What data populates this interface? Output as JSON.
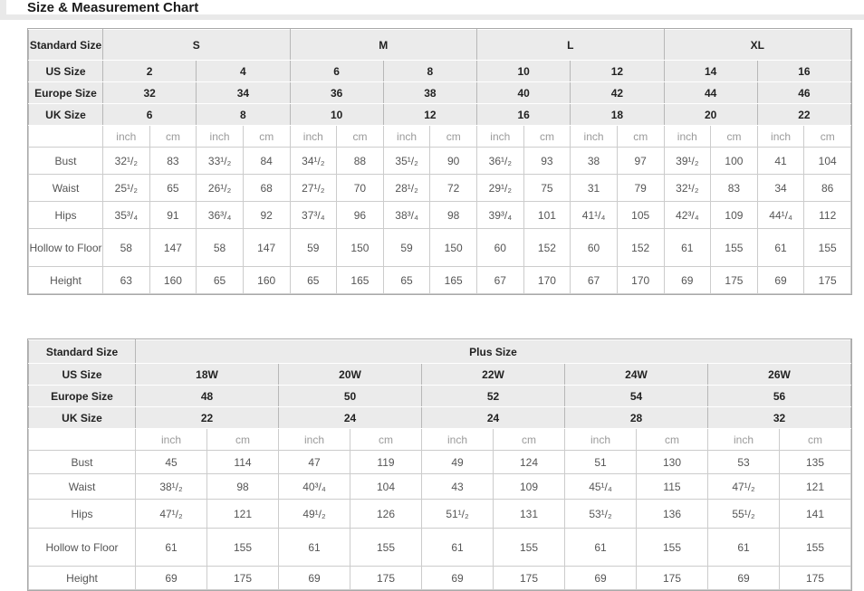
{
  "page": {
    "title": "Size & Measurement Chart"
  },
  "chart_data": [
    {
      "type": "table",
      "id": "standard",
      "corner_label": "Standard Size",
      "size_groups": [
        {
          "label": "S",
          "span": 4
        },
        {
          "label": "M",
          "span": 4
        },
        {
          "label": "L",
          "span": 4
        },
        {
          "label": "XL",
          "span": 4
        }
      ],
      "size_rows": [
        {
          "label": "US Size",
          "values": [
            "2",
            "4",
            "6",
            "8",
            "10",
            "12",
            "14",
            "16"
          ]
        },
        {
          "label": "Europe Size",
          "values": [
            "32",
            "34",
            "36",
            "38",
            "40",
            "42",
            "44",
            "46"
          ]
        },
        {
          "label": "UK Size",
          "values": [
            "6",
            "8",
            "10",
            "12",
            "16",
            "18",
            "20",
            "22"
          ]
        }
      ],
      "units": [
        "inch",
        "cm"
      ],
      "measure_rows": [
        {
          "label": "Bust",
          "values": [
            "32¹/₂",
            "83",
            "33¹/₂",
            "84",
            "34¹/₂",
            "88",
            "35¹/₂",
            "90",
            "36¹/₂",
            "93",
            "38",
            "97",
            "39¹/₂",
            "100",
            "41",
            "104"
          ]
        },
        {
          "label": "Waist",
          "values": [
            "25¹/₂",
            "65",
            "26¹/₂",
            "68",
            "27¹/₂",
            "70",
            "28¹/₂",
            "72",
            "29¹/₂",
            "75",
            "31",
            "79",
            "32¹/₂",
            "83",
            "34",
            "86"
          ]
        },
        {
          "label": "Hips",
          "values": [
            "35³/₄",
            "91",
            "36³/₄",
            "92",
            "37³/₄",
            "96",
            "38³/₄",
            "98",
            "39³/₄",
            "101",
            "41¹/₄",
            "105",
            "42³/₄",
            "109",
            "44¹/₄",
            "112"
          ]
        },
        {
          "label": "Hollow to Floor",
          "values": [
            "58",
            "147",
            "58",
            "147",
            "59",
            "150",
            "59",
            "150",
            "60",
            "152",
            "60",
            "152",
            "61",
            "155",
            "61",
            "155"
          ]
        },
        {
          "label": "Height",
          "values": [
            "63",
            "160",
            "65",
            "160",
            "65",
            "165",
            "65",
            "165",
            "67",
            "170",
            "67",
            "170",
            "69",
            "175",
            "69",
            "175"
          ]
        }
      ]
    },
    {
      "type": "table",
      "id": "plus",
      "corner_label": "Standard Size",
      "size_groups": [
        {
          "label": "Plus Size",
          "span": 10
        }
      ],
      "size_rows": [
        {
          "label": "US Size",
          "values": [
            "18W",
            "20W",
            "22W",
            "24W",
            "26W"
          ]
        },
        {
          "label": "Europe Size",
          "values": [
            "48",
            "50",
            "52",
            "54",
            "56"
          ]
        },
        {
          "label": "UK Size",
          "values": [
            "22",
            "24",
            "24",
            "28",
            "32"
          ]
        }
      ],
      "units": [
        "inch",
        "cm"
      ],
      "measure_rows": [
        {
          "label": "Bust",
          "values": [
            "45",
            "114",
            "47",
            "119",
            "49",
            "124",
            "51",
            "130",
            "53",
            "135"
          ]
        },
        {
          "label": "Waist",
          "values": [
            "38¹/₂",
            "98",
            "40³/₄",
            "104",
            "43",
            "109",
            "45¹/₄",
            "115",
            "47¹/₂",
            "121"
          ]
        },
        {
          "label": "Hips",
          "values": [
            "47¹/₂",
            "121",
            "49¹/₂",
            "126",
            "51¹/₂",
            "131",
            "53¹/₂",
            "136",
            "55¹/₂",
            "141"
          ]
        },
        {
          "label": "Hollow to Floor",
          "values": [
            "61",
            "155",
            "61",
            "155",
            "61",
            "155",
            "61",
            "155",
            "61",
            "155"
          ]
        },
        {
          "label": "Height",
          "values": [
            "69",
            "175",
            "69",
            "175",
            "69",
            "175",
            "69",
            "175",
            "69",
            "175"
          ]
        }
      ]
    }
  ]
}
